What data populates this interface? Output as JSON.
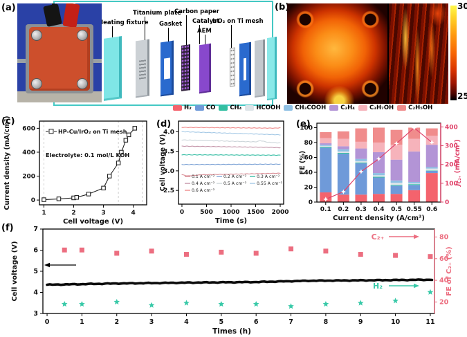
{
  "panels": {
    "a": {
      "label": "(a)",
      "components": {
        "heating_fixture": "Heating fixture",
        "titanium_plate": "Titanium plate",
        "gasket": "Gasket",
        "carbon_paper": "Carbon paper",
        "catalyst": "Catalyst",
        "aem": "AEM",
        "iro2_mesh": "IrO₂ on Ti mesh"
      }
    },
    "b": {
      "label": "(b)",
      "colorbar": {
        "max": "30",
        "min": "25"
      }
    },
    "c": {
      "label": "(c)"
    },
    "d": {
      "label": "(d)"
    },
    "e": {
      "label": "(e)"
    },
    "f": {
      "label": "(f)"
    }
  },
  "product_legend": {
    "items": [
      {
        "label": "H₂",
        "color": "#f4636d"
      },
      {
        "label": "CO",
        "color": "#6f9ad9"
      },
      {
        "label": "CH₄",
        "color": "#33bfa2"
      },
      {
        "label": "HCOOH",
        "color": "#dde4e8"
      },
      {
        "label": "CH₃COOH",
        "color": "#8fc0e4"
      },
      {
        "label": "C₂H₄",
        "color": "#b394d6"
      },
      {
        "label": "C₃H₇OH",
        "color": "#f6b3bb"
      },
      {
        "label": "C₂H₅OH",
        "color": "#f08c8c"
      }
    ]
  },
  "chart_data": [
    {
      "id": "c",
      "type": "scatter",
      "series_label": "HP-Cu/IrO₂ on Ti mesh",
      "annotation": "Electrolyte: 0.1 mol/L KOH",
      "xlabel": "Cell voltage (V)",
      "ylabel": "Current density (mA/cm²)",
      "xlim": [
        0.85,
        4.45
      ],
      "ylim": [
        -40,
        660
      ],
      "xticks": [
        1,
        2,
        3,
        4
      ],
      "yticks": [
        0,
        200,
        400,
        600
      ],
      "gridlines_x": [
        1.0,
        3.5,
        4.3
      ],
      "x": [
        1.0,
        1.5,
        2.0,
        2.1,
        2.5,
        3.0,
        3.2,
        3.5,
        3.6,
        3.75,
        3.85,
        4.05
      ],
      "y": [
        3,
        10,
        18,
        22,
        50,
        100,
        200,
        310,
        400,
        500,
        545,
        600
      ]
    },
    {
      "id": "d",
      "type": "line",
      "xlabel": "Time (s)",
      "ylabel": "Cell voltage (V)",
      "xlim": [
        -70,
        2070
      ],
      "ylim": [
        2.15,
        4.27
      ],
      "xticks": [
        0,
        500,
        1000,
        1500,
        2000
      ],
      "yticks": [
        2.5,
        3.0,
        3.5,
        4.0
      ],
      "series": [
        {
          "name": "0.1 A cm⁻²",
          "color": "#d98e96",
          "points": [
            [
              0,
              2.9
            ],
            [
              120,
              2.87
            ],
            [
              400,
              2.9
            ],
            [
              2000,
              2.94
            ]
          ]
        },
        {
          "name": "0.2 A cm⁻²",
          "color": "#7fa4d6",
          "points": [
            [
              0,
              3.16
            ],
            [
              2000,
              3.17
            ]
          ]
        },
        {
          "name": "0.3 A cm⁻²",
          "color": "#3bbfa6",
          "points": [
            [
              0,
              3.41
            ],
            [
              2000,
              3.4
            ]
          ]
        },
        {
          "name": "0.4 A cm⁻²",
          "color": "#c495a9",
          "points": [
            [
              0,
              3.63
            ],
            [
              1800,
              3.6
            ],
            [
              2000,
              3.59
            ]
          ]
        },
        {
          "name": "0.5 A cm⁻²",
          "color": "#ccd5d9",
          "points": [
            [
              0,
              3.79
            ],
            [
              1500,
              3.74
            ],
            [
              1600,
              3.77
            ],
            [
              1750,
              3.73
            ],
            [
              2000,
              3.71
            ]
          ]
        },
        {
          "name": "0.55 A cm⁻²",
          "color": "#a5c9e6",
          "points": [
            [
              0,
              4.0
            ],
            [
              2000,
              3.92
            ]
          ]
        },
        {
          "name": "0.6 A cm⁻²",
          "color": "#ef8d8d",
          "points": [
            [
              0,
              4.11
            ],
            [
              1900,
              4.09
            ],
            [
              2000,
              4.1
            ]
          ]
        }
      ]
    },
    {
      "id": "e",
      "type": "stacked-bar",
      "xlabel": "Current density (A/cm²)",
      "ylabel_left": "FE (%)",
      "ylabel_right": "jC₂₊ (mA/cm²)",
      "categories": [
        "0.1",
        "0.2",
        "0.3",
        "0.4",
        "0.5",
        "0.55",
        "0.6"
      ],
      "ylim_left": [
        0,
        106
      ],
      "yticks_left": [
        0,
        20,
        40,
        60,
        80,
        100
      ],
      "ylim_right": [
        0,
        420
      ],
      "yticks_right": [
        0,
        100,
        200,
        300,
        400
      ],
      "series": [
        {
          "name": "H₂",
          "values": [
            13,
            10,
            10,
            11,
            11,
            16,
            39
          ]
        },
        {
          "name": "CO",
          "values": [
            60,
            55,
            42,
            22,
            11,
            7,
            3
          ]
        },
        {
          "name": "CH₄",
          "values": [
            1,
            1,
            1,
            1,
            1,
            1,
            0.5
          ]
        },
        {
          "name": "HCOOH",
          "values": [
            1.5,
            2,
            2,
            2,
            3,
            1,
            2.5
          ]
        },
        {
          "name": "CH₃COOH",
          "values": [
            1.5,
            3,
            3,
            3,
            3,
            2,
            2
          ]
        },
        {
          "name": "C₂H₄",
          "values": [
            2,
            4,
            14,
            28,
            28,
            41,
            30
          ]
        },
        {
          "name": "C₃H₇OH",
          "values": [
            7,
            10,
            9,
            13,
            20,
            17,
            12
          ]
        },
        {
          "name": "C₂H₅OH",
          "values": [
            8,
            10,
            18,
            20,
            20,
            15,
            10
          ]
        }
      ],
      "j_c2plus": {
        "name": "jC₂₊",
        "color": "#e0436a",
        "values": [
          15,
          55,
          162,
          230,
          312,
          395,
          318
        ]
      }
    },
    {
      "id": "f",
      "type": "stability",
      "xlabel": "Times (h)",
      "ylabel_left": "Cell voltage (V)",
      "ylabel_right": "FE of C₂₊ (%)",
      "xlim": [
        -0.12,
        11.12
      ],
      "xticks": [
        0,
        1,
        2,
        3,
        4,
        5,
        6,
        7,
        8,
        9,
        10,
        11
      ],
      "ylim_left": [
        3,
        7
      ],
      "yticks_left": [
        3,
        4,
        5,
        6,
        7
      ],
      "yticks_right": [
        20,
        40,
        60,
        80
      ],
      "right_scale": {
        "left_at_right0": 2.52,
        "volts_per_unit": 0.05128
      },
      "voltage_profile": [
        [
          0,
          4.36
        ],
        [
          2,
          4.42
        ],
        [
          4,
          4.46
        ],
        [
          6,
          4.49
        ],
        [
          7.5,
          4.55
        ],
        [
          9,
          4.57
        ],
        [
          11.05,
          4.6
        ]
      ],
      "times": [
        0.5,
        1,
        2,
        3,
        4,
        5,
        6,
        7,
        8,
        9,
        10,
        11
      ],
      "fe_c2plus": {
        "label": "C₂₊",
        "color": "#ec6e80",
        "values": [
          68,
          68,
          65,
          67,
          64,
          66,
          65,
          69,
          67,
          64,
          63,
          62
        ]
      },
      "fe_h2": {
        "label": "H₂",
        "color": "#38c9a8",
        "values": [
          18,
          18,
          20,
          17,
          19,
          18,
          18,
          16,
          18,
          19,
          21,
          29
        ]
      }
    }
  ]
}
